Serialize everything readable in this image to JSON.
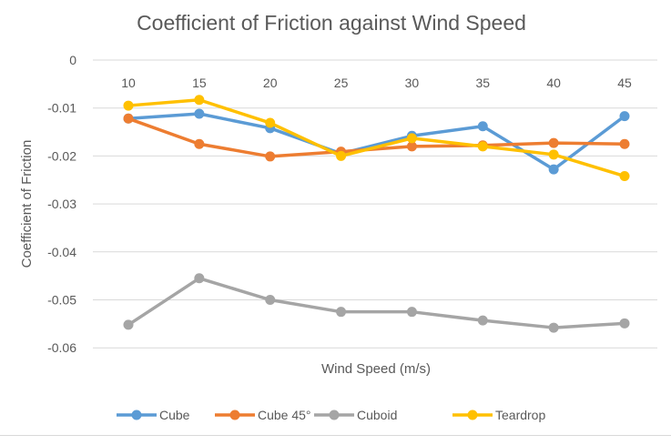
{
  "chart_data": {
    "type": "line",
    "title": "Coefficient of Friction against Wind Speed",
    "xlabel": "Wind Speed (m/s)",
    "ylabel": "Coefficient of Friction",
    "categories": [
      "10",
      "15",
      "20",
      "25",
      "30",
      "35",
      "40",
      "45"
    ],
    "yticks": [
      "0",
      "-0.01",
      "-0.02",
      "-0.03",
      "-0.04",
      "-0.05",
      "-0.06"
    ],
    "ytick_values": [
      0,
      -0.01,
      -0.02,
      -0.03,
      -0.04,
      -0.05,
      -0.06
    ],
    "ylim": [
      -0.06,
      0
    ],
    "grid": true,
    "legend_position": "bottom",
    "series": [
      {
        "name": "Cube",
        "color": "#5B9BD5",
        "values": [
          -0.0122,
          -0.0112,
          -0.0142,
          -0.0195,
          -0.0158,
          -0.0138,
          -0.0228,
          -0.0117
        ]
      },
      {
        "name": "Cube 45°",
        "color": "#ED7D31",
        "values": [
          -0.0122,
          -0.0175,
          -0.0201,
          -0.0191,
          -0.018,
          -0.0178,
          -0.0173,
          -0.0175
        ]
      },
      {
        "name": "Cuboid",
        "color": "#A5A5A5",
        "values": [
          -0.0552,
          -0.0455,
          -0.05,
          -0.0525,
          -0.0525,
          -0.0543,
          -0.0558,
          -0.0549
        ]
      },
      {
        "name": "Teardrop",
        "color": "#FFC000",
        "values": [
          -0.0095,
          -0.0083,
          -0.0131,
          -0.02,
          -0.0163,
          -0.018,
          -0.0197,
          -0.0242
        ]
      }
    ]
  }
}
